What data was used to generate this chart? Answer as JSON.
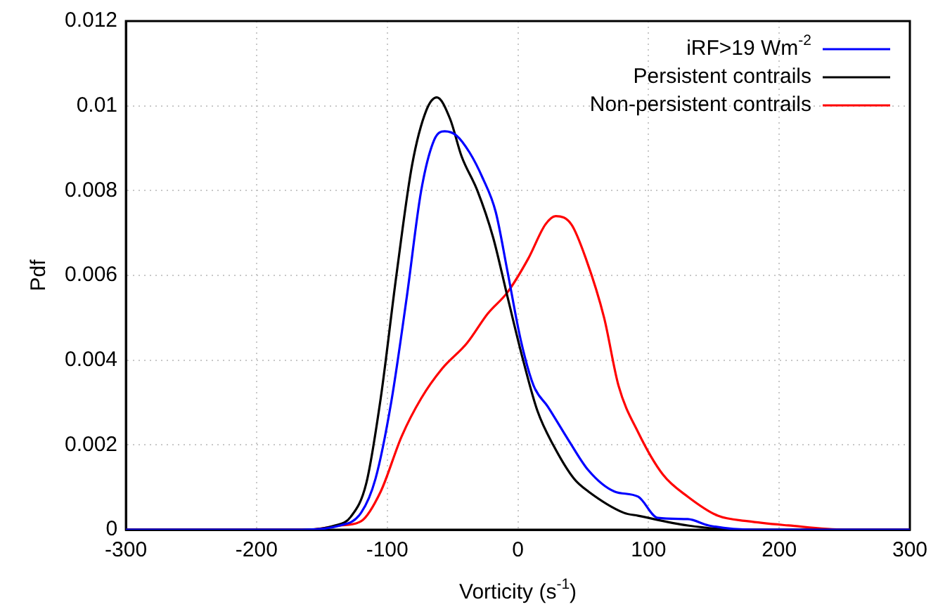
{
  "chart_data": {
    "type": "line",
    "xlabel": "Vorticity (s$^{-1}$)",
    "ylabel": "Pdf",
    "xlim": [
      -300,
      300
    ],
    "xticks": [
      -300,
      -200,
      -100,
      0,
      100,
      200,
      300
    ],
    "ylim": [
      0,
      0.012
    ],
    "yticks": [
      0,
      0.002,
      0.004,
      0.006,
      0.008,
      0.01,
      0.012
    ],
    "grid": true,
    "legend": "top right",
    "marker": "none",
    "line_style": "solid",
    "series": [
      {
        "name": "iRF>19 Wm$^{-2}$",
        "color": "#0000ff",
        "x": [
          -300,
          -170,
          -136,
          -120,
          -109,
          -97,
          -85,
          -74,
          -64,
          -56,
          -47,
          -37,
          -27,
          -17,
          -8,
          2,
          12,
          23,
          39,
          54,
          74,
          92,
          107,
          130,
          146,
          180,
          250,
          300
        ],
        "values": [
          0,
          0,
          0.0001,
          0.0004,
          0.0012,
          0.003,
          0.0055,
          0.008,
          0.0092,
          0.0094,
          0.0093,
          0.0089,
          0.0083,
          0.0075,
          0.0061,
          0.0045,
          0.0034,
          0.0029,
          0.0021,
          0.0014,
          0.0009,
          0.00078,
          0.00028,
          0.00025,
          0.0001,
          0,
          0,
          0
        ]
      },
      {
        "name": "Persistent contrails",
        "color": "#000000",
        "x": [
          -300,
          -170,
          -140,
          -128,
          -116,
          -105,
          -93,
          -81,
          -70,
          -62,
          -52,
          -43,
          -31,
          -19,
          -8,
          4,
          15,
          27,
          43,
          54,
          81,
          92,
          130,
          170,
          300
        ],
        "values": [
          0,
          0,
          0.0001,
          0.0003,
          0.0011,
          0.0031,
          0.006,
          0.0086,
          0.0099,
          0.0102,
          0.0097,
          0.0088,
          0.008,
          0.0069,
          0.0055,
          0.004,
          0.0028,
          0.002,
          0.0012,
          0.0009,
          0.0004,
          0.00033,
          0.0001,
          0,
          0
        ]
      },
      {
        "name": "Non-persistent contrails",
        "color": "#ff0000",
        "x": [
          -300,
          -160,
          -136,
          -120,
          -105,
          -89,
          -74,
          -58,
          -39,
          -23,
          -8,
          8,
          21,
          29,
          41,
          52,
          66,
          77,
          92,
          111,
          130,
          153,
          176,
          207,
          250,
          300
        ],
        "values": [
          0,
          0,
          0.0001,
          0.0002,
          0.0009,
          0.0022,
          0.0031,
          0.0038,
          0.0044,
          0.0051,
          0.0056,
          0.0064,
          0.0072,
          0.0074,
          0.0072,
          0.0064,
          0.005,
          0.0034,
          0.0023,
          0.0013,
          0.00078,
          0.00033,
          0.0002,
          0.0001,
          0,
          0
        ]
      }
    ]
  }
}
